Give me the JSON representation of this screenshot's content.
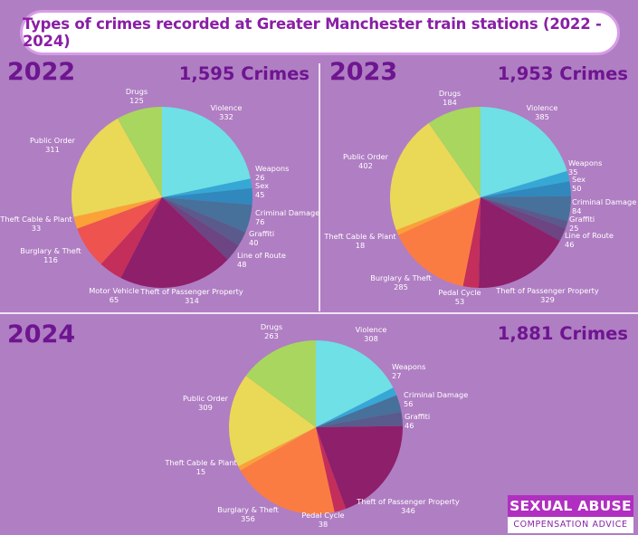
{
  "title": "Types of crimes recorded at Greater Manchester train stations (2022 - 2024)",
  "logo": {
    "line1": "SEXUAL ABUSE",
    "line2": "COMPENSATION ADVICE"
  },
  "chart_data": [
    {
      "type": "pie",
      "year": "2022",
      "total_label": "1,595 Crimes",
      "slices": [
        {
          "name": "Violence",
          "value": 332,
          "color": "#6ee0e6"
        },
        {
          "name": "Weapons",
          "value": 26,
          "color": "#35a8d6"
        },
        {
          "name": "Sex",
          "value": 45,
          "color": "#3088bd"
        },
        {
          "name": "Criminal Damage",
          "value": 76,
          "color": "#47709a"
        },
        {
          "name": "Graffiti",
          "value": 40,
          "color": "#5a5a8c"
        },
        {
          "name": "Line of Route",
          "value": 48,
          "color": "#6c4582"
        },
        {
          "name": "Theft of Passenger Property",
          "value": 314,
          "color": "#8e1f6a"
        },
        {
          "name": "Motor Vehicle",
          "value": 65,
          "color": "#c42e5a"
        },
        {
          "name": "Burglary & Theft",
          "value": 116,
          "color": "#ec4f58"
        },
        {
          "name": "Theft Cable & Plant",
          "value": 33,
          "color": "#fb7c42"
        },
        {
          "name": "Public Order",
          "value": 311,
          "color": "#f3b637"
        },
        {
          "name": "Drugs",
          "value": 125,
          "color": "#e9d85c"
        }
      ],
      "colors_override": [
        "#6ee0e6",
        "#35a8d6",
        "#3088bd",
        "#47709a",
        "#5a5a8c",
        "#6c4582",
        "#8e1f6a",
        "#c42e5a",
        "#ee5350",
        "#fba137",
        "#ead857",
        "#a8d65f"
      ]
    },
    {
      "type": "pie",
      "year": "2023",
      "total_label": "1,953 Crimes",
      "slices": [
        {
          "name": "Violence",
          "value": 385
        },
        {
          "name": "Weapons",
          "value": 35
        },
        {
          "name": "Sex",
          "value": 50
        },
        {
          "name": "Criminal Damage",
          "value": 84
        },
        {
          "name": "Graffiti",
          "value": 25
        },
        {
          "name": "Line of Route",
          "value": 46
        },
        {
          "name": "Theft of Passenger Property",
          "value": 329
        },
        {
          "name": "Pedal Cycle",
          "value": 53
        },
        {
          "name": "Burglary & Theft",
          "value": 285
        },
        {
          "name": "Theft Cable & Plant",
          "value": 18
        },
        {
          "name": "Public Order",
          "value": 402
        },
        {
          "name": "Drugs",
          "value": 184
        }
      ],
      "colors_override": [
        "#6ee0e6",
        "#35a8d6",
        "#3088bd",
        "#47709a",
        "#5a5a8c",
        "#6c4582",
        "#8e1f6a",
        "#c42e5a",
        "#fb7c42",
        "#fba137",
        "#ead857",
        "#a8d65f"
      ]
    },
    {
      "type": "pie",
      "year": "2024",
      "total_label": "1,881 Crimes",
      "slices": [
        {
          "name": "Violence",
          "value": 308
        },
        {
          "name": "Weapons",
          "value": 27
        },
        {
          "name": "Criminal Damage",
          "value": 56
        },
        {
          "name": "Graffiti",
          "value": 46
        },
        {
          "name": "Theft of Passenger Property",
          "value": 346
        },
        {
          "name": "Pedal Cycle",
          "value": 38
        },
        {
          "name": "Burglary & Theft",
          "value": 356
        },
        {
          "name": "Theft Cable & Plant",
          "value": 15
        },
        {
          "name": "Public Order",
          "value": 309
        },
        {
          "name": "Drugs",
          "value": 263
        }
      ],
      "colors_override": [
        "#6ee0e6",
        "#35a8d6",
        "#47709a",
        "#5a5a8c",
        "#8e1f6a",
        "#c42e5a",
        "#fb7c42",
        "#fba137",
        "#ead857",
        "#a8d65f"
      ]
    }
  ]
}
